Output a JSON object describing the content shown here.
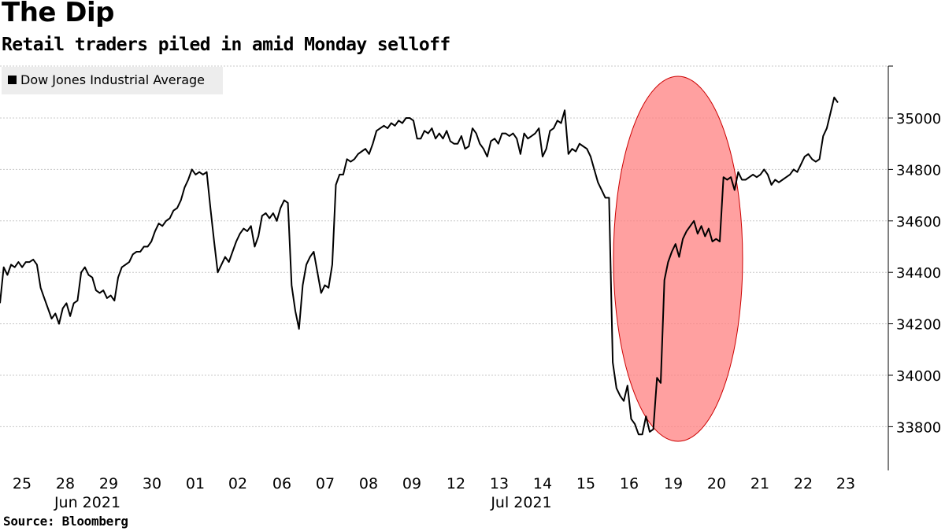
{
  "header": {
    "title": "The Dip",
    "subtitle": "Retail traders piled in amid Monday selloff"
  },
  "footer": {
    "source": "Source: Bloomberg"
  },
  "colors": {
    "line": "#000000",
    "highlight_fill": "#ff8080",
    "highlight_stroke": "#cc0000",
    "grid": "#c8c8c8",
    "legend_bg": "#ededed"
  },
  "chart_data": {
    "type": "line",
    "title": "The Dip",
    "subtitle": "Retail traders piled in amid Monday selloff",
    "legend": [
      "Dow Jones Industrial Average"
    ],
    "ylim": [
      33630,
      35200
    ],
    "yticks": [
      33800,
      34000,
      34200,
      34400,
      34600,
      34800,
      35000
    ],
    "x_tick_labels": [
      "25",
      "28",
      "29",
      "30",
      "01",
      "02",
      "06",
      "07",
      "08",
      "09",
      "12",
      "13",
      "14",
      "15",
      "16",
      "19",
      "20",
      "21",
      "22",
      "23"
    ],
    "x_group_labels": [
      "Jun 2021",
      "Jul 2021"
    ],
    "annotation": {
      "type": "ellipse",
      "around": "19 Jul selloff"
    },
    "series": [
      {
        "name": "Dow Jones Industrial Average",
        "values": [
          34280,
          34420,
          34390,
          34430,
          34420,
          34440,
          34420,
          34440,
          34440,
          34450,
          34430,
          34340,
          34300,
          34260,
          34220,
          34240,
          34200,
          34260,
          34280,
          34230,
          34280,
          34290,
          34400,
          34420,
          34390,
          34380,
          34330,
          34320,
          34330,
          34300,
          34310,
          34290,
          34380,
          34420,
          34430,
          34440,
          34470,
          34480,
          34480,
          34500,
          34500,
          34520,
          34560,
          34590,
          34580,
          34600,
          34610,
          34640,
          34650,
          34680,
          34730,
          34760,
          34800,
          34780,
          34790,
          34780,
          34790,
          34650,
          34520,
          34400,
          34430,
          34460,
          34440,
          34480,
          34520,
          34550,
          34570,
          34560,
          34580,
          34500,
          34540,
          34620,
          34630,
          34610,
          34630,
          34600,
          34650,
          34680,
          34670,
          34350,
          34250,
          34180,
          34350,
          34430,
          34460,
          34480,
          34400,
          34320,
          34350,
          34340,
          34430,
          34740,
          34780,
          34780,
          34840,
          34830,
          34840,
          34860,
          34870,
          34880,
          34860,
          34900,
          34950,
          34960,
          34970,
          34960,
          34980,
          34970,
          34990,
          34980,
          35000,
          35000,
          34990,
          34920,
          34920,
          34950,
          34940,
          34960,
          34920,
          34940,
          34920,
          34950,
          34910,
          34900,
          34900,
          34930,
          34880,
          34890,
          34960,
          34940,
          34900,
          34880,
          34850,
          34910,
          34920,
          34900,
          34940,
          34940,
          34930,
          34940,
          34920,
          34860,
          34940,
          34920,
          34930,
          34940,
          34960,
          34850,
          34880,
          34950,
          34960,
          34990,
          34980,
          35030,
          34860,
          34880,
          34870,
          34900,
          34890,
          34880,
          34850,
          34800,
          34750,
          34720,
          34690,
          34690,
          34050,
          33950,
          33920,
          33900,
          33960,
          33830,
          33810,
          33770,
          33770,
          33840,
          33780,
          33790,
          33990,
          33970,
          34370,
          34440,
          34480,
          34510,
          34460,
          34530,
          34560,
          34580,
          34600,
          34550,
          34580,
          34540,
          34570,
          34520,
          34530,
          34520,
          34770,
          34760,
          34770,
          34720,
          34790,
          34760,
          34760,
          34770,
          34780,
          34770,
          34780,
          34800,
          34780,
          34740,
          34760,
          34750,
          34760,
          34770,
          34780,
          34800,
          34790,
          34820,
          34850,
          34860,
          34840,
          34830,
          34840,
          34930,
          34960,
          35020,
          35080,
          35060
        ]
      }
    ]
  }
}
